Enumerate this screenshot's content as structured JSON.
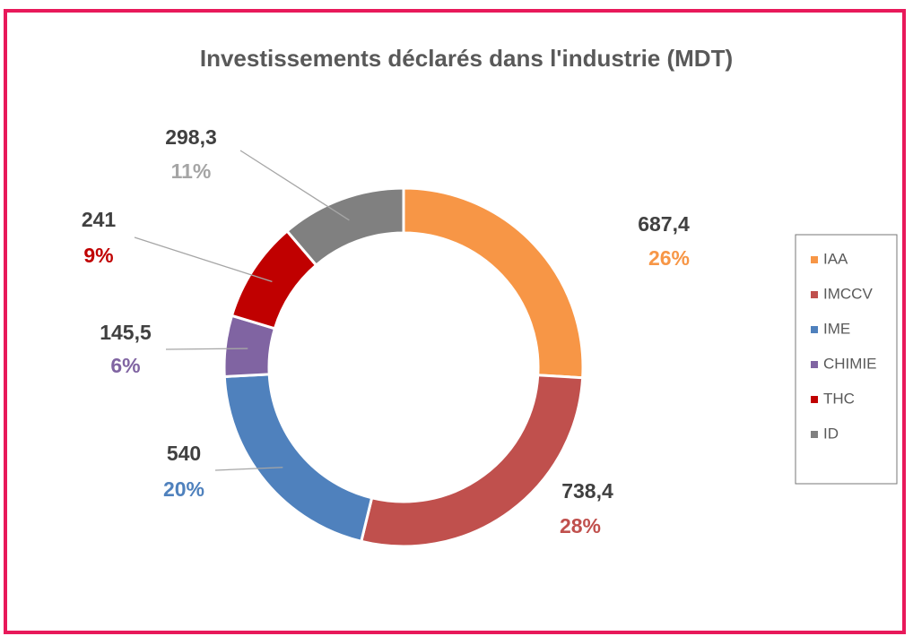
{
  "chart_data": {
    "type": "donut",
    "title": "Investissements déclarés dans l'industrie (MDT)",
    "categories": [
      "IAA",
      "IMCCV",
      "IME",
      "CHIMIE",
      "THC",
      "ID"
    ],
    "values": [
      687.4,
      738.4,
      540,
      145.5,
      241,
      298.3
    ],
    "value_labels": [
      "687,4",
      "738,4",
      "540",
      "145,5",
      "241",
      "298,3"
    ],
    "percents": [
      26,
      28,
      20,
      6,
      9,
      11
    ],
    "percent_labels": [
      "26%",
      "28%",
      "20%",
      "6%",
      "9%",
      "11%"
    ],
    "colors": [
      "#f79646",
      "#c0504d",
      "#4f81bd",
      "#8064a2",
      "#c00000",
      "#808080"
    ],
    "legend": "right"
  }
}
